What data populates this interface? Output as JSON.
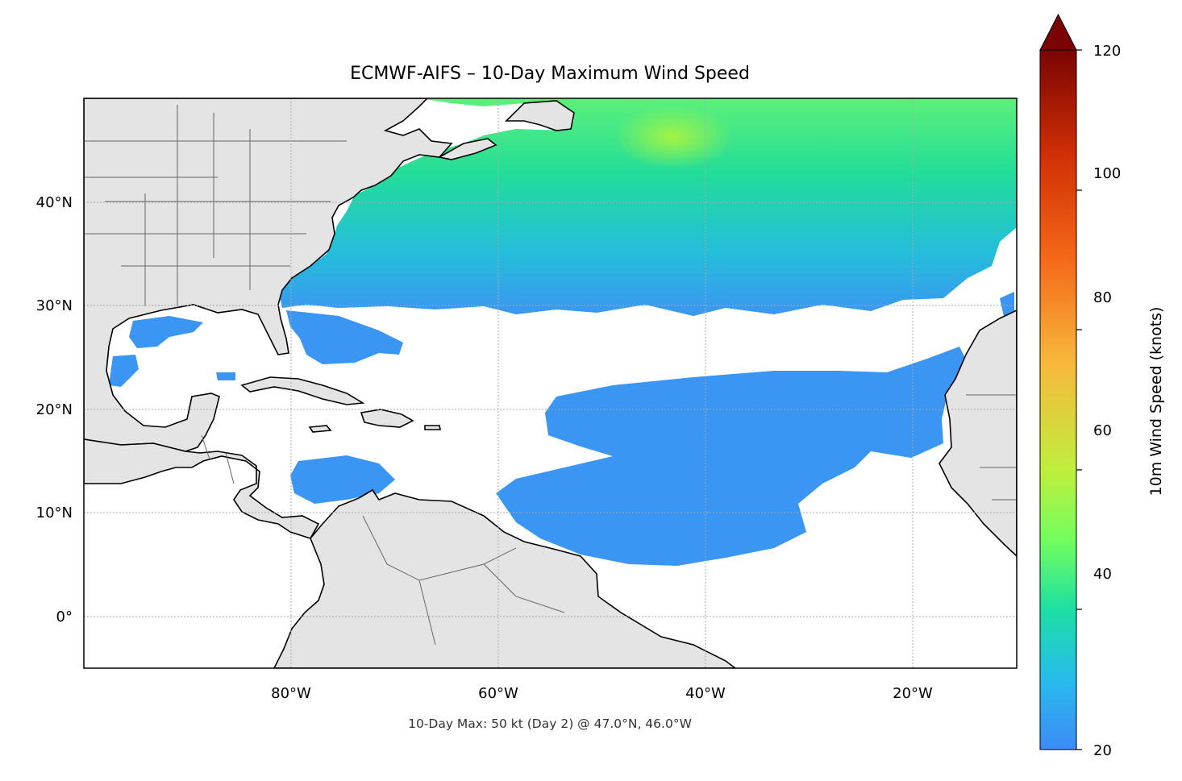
{
  "title": "ECMWF-AIFS – 10-Day Maximum Wind Speed",
  "annotation": "10-Day Max: 50 kt (Day 2) @ 47.0°N, 46.0°W",
  "map": {
    "projection": "PlateCarree",
    "lon_range": [
      -100,
      -10
    ],
    "lat_range": [
      -5,
      50
    ],
    "lon_ticks": [
      {
        "value": -80,
        "label": "80°W"
      },
      {
        "value": -60,
        "label": "60°W"
      },
      {
        "value": -40,
        "label": "40°W"
      },
      {
        "value": -20,
        "label": "20°W"
      }
    ],
    "lat_ticks": [
      {
        "value": 40,
        "label": "40°N"
      },
      {
        "value": 30,
        "label": "30°N"
      },
      {
        "value": 20,
        "label": "20°N"
      },
      {
        "value": 10,
        "label": "10°N"
      },
      {
        "value": 0,
        "label": "0°"
      }
    ],
    "gridlines": true,
    "land_color": "#e4e4e4",
    "coast_color": "#000000",
    "border_color": "#666666"
  },
  "colorbar": {
    "label": "10m Wind Speed (knots)",
    "range": [
      20,
      120
    ],
    "ticks": [
      {
        "value": 20,
        "label": "20"
      },
      {
        "value": 40,
        "label": "40"
      },
      {
        "value": 60,
        "label": "60"
      },
      {
        "value": 80,
        "label": "80"
      },
      {
        "value": 100,
        "label": "100"
      },
      {
        "value": 120,
        "label": "120"
      }
    ],
    "extend": "max",
    "colormap": "turbo",
    "colors": [
      "#3d8bf7",
      "#28bbec",
      "#1ddfa3",
      "#72fe5e",
      "#c0ee3d",
      "#f6b93c",
      "#f56919",
      "#d02f05",
      "#8e0b01",
      "#7a0403"
    ]
  }
}
